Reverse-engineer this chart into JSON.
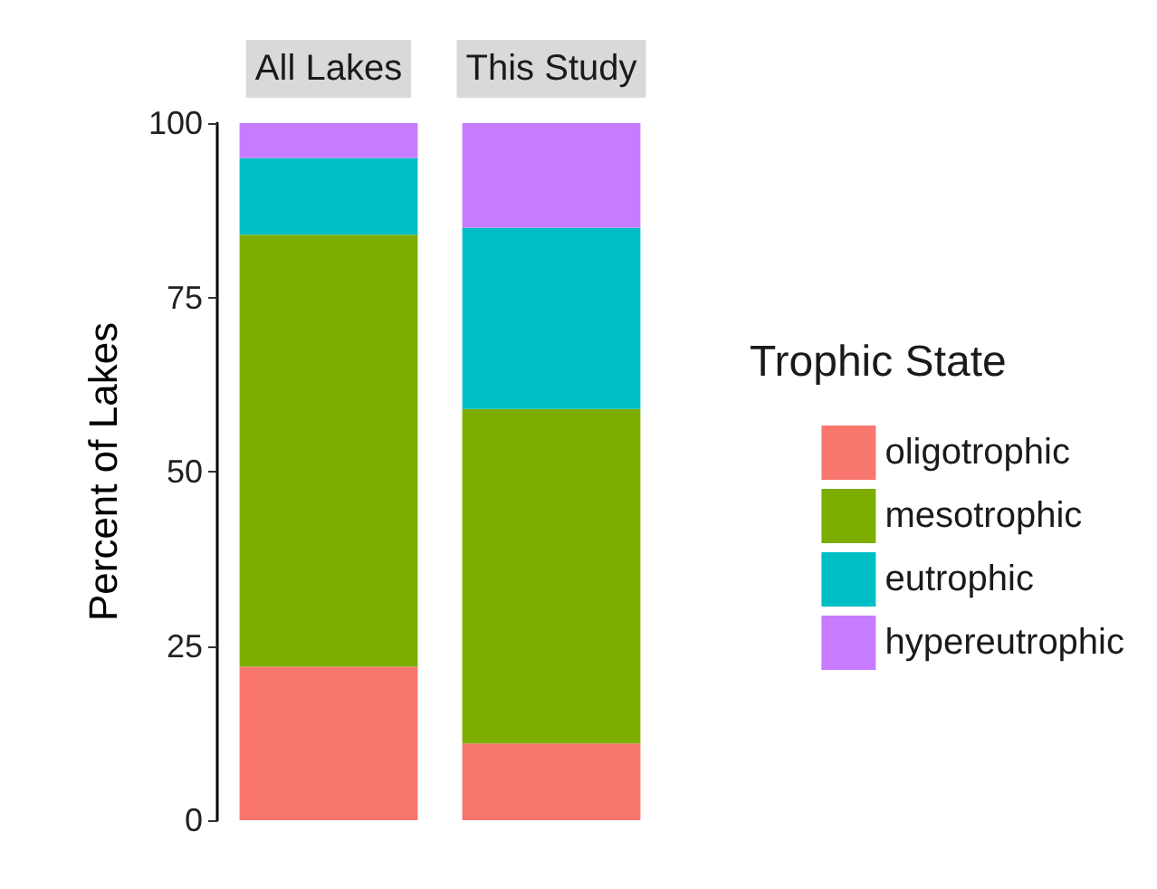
{
  "chart_data": {
    "type": "bar",
    "stacked": true,
    "categories": [
      "All Lakes",
      "This Study"
    ],
    "ylabel": "Percent of Lakes",
    "legend_title": "Trophic State",
    "legend": "right",
    "grid": false,
    "ylim": [
      0,
      100
    ],
    "yticks": [
      0,
      25,
      50,
      75,
      100
    ],
    "series": [
      {
        "name": "oligotrophic",
        "color": "#f8766d",
        "values": [
          22,
          11
        ]
      },
      {
        "name": "mesotrophic",
        "color": "#7cae00",
        "values": [
          62,
          48
        ]
      },
      {
        "name": "eutrophic",
        "color": "#00bfc4",
        "values": [
          11,
          26
        ]
      },
      {
        "name": "hypereutrophic",
        "color": "#c77cff",
        "values": [
          5,
          15
        ]
      }
    ]
  }
}
